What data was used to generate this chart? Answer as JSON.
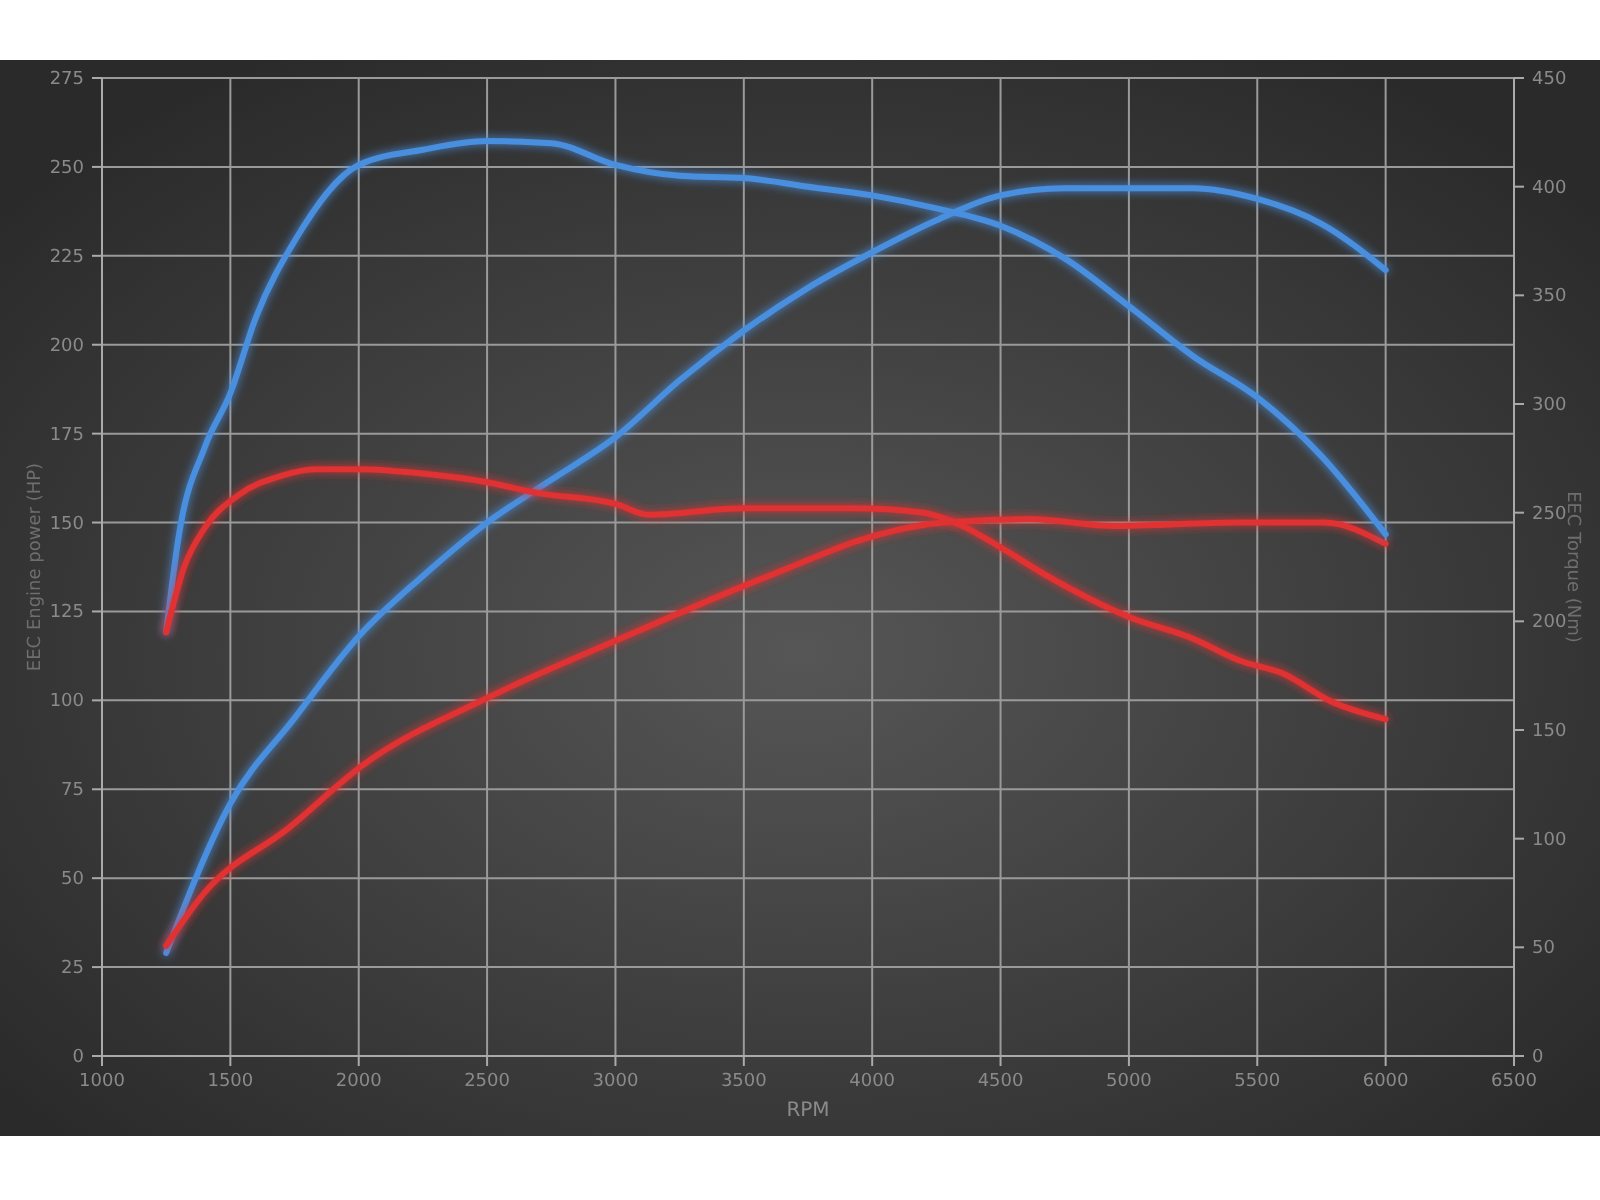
{
  "chart_data": {
    "type": "line",
    "xlabel": "RPM",
    "ylabel": "EEC Engine power (HP)",
    "y2label": "EEC Torque (Nm)",
    "xlim": [
      1000,
      6500
    ],
    "xticks": [
      1000,
      1500,
      2000,
      2500,
      3000,
      3500,
      4000,
      4500,
      5000,
      5500,
      6000,
      6500
    ],
    "ylim": [
      0,
      275
    ],
    "yticks": [
      0,
      25,
      50,
      75,
      100,
      125,
      150,
      175,
      200,
      225,
      250,
      275
    ],
    "y2lim": [
      0,
      450
    ],
    "y2ticks": [
      0,
      50,
      100,
      150,
      200,
      250,
      300,
      350,
      400,
      450
    ],
    "grid": true,
    "marker": "none",
    "line_style": "solid",
    "series": [
      {
        "color": "#4a8fe0",
        "x": [
          1250,
          1500,
          1750,
          2000,
          2250,
          2500,
          2750,
          3000,
          3250,
          3500,
          3750,
          4000,
          4250,
          4500,
          4750,
          5000,
          5250,
          5500,
          5750,
          6000
        ],
        "values": [
          29,
          71,
          95,
          118,
          135,
          150,
          162,
          174,
          190,
          204,
          216,
          226,
          235,
          242,
          244,
          244,
          244,
          241,
          234,
          221
        ]
      },
      {
        "color": "#e03030",
        "x": [
          1250,
          1400,
          1725,
          2020,
          2510,
          3040,
          3460,
          3700,
          3950,
          4280,
          4615,
          4940,
          5430,
          5760,
          6000
        ],
        "values": [
          31,
          46,
          64,
          82,
          101,
          118,
          131,
          138,
          145,
          150,
          151,
          149,
          150,
          150,
          144
        ]
      },
      {
        "color": "#4a8fe0",
        "axis": "y2",
        "x": [
          1250,
          1300,
          1400,
          1500,
          1600,
          1750,
          2000,
          2250,
          2500,
          2750,
          3000,
          3250,
          3500,
          3750,
          4000,
          4250,
          4500,
          4750,
          5000,
          5250,
          5500,
          5750,
          6000
        ],
        "values": [
          195,
          240,
          280,
          305,
          340,
          375,
          410,
          417,
          421,
          420,
          410,
          405,
          404,
          400,
          396,
          390,
          382,
          367,
          345,
          322,
          303,
          276,
          240
        ]
      },
      {
        "color": "#e03030",
        "axis": "y2",
        "x": [
          1250,
          1320,
          1400,
          1530,
          1700,
          1830,
          2000,
          2250,
          2500,
          2700,
          3000,
          3130,
          3500,
          3920,
          4200,
          4350,
          4500,
          4680,
          5000,
          5250,
          5430,
          5600,
          5790,
          6000
        ],
        "values": [
          195,
          225,
          243,
          258,
          267,
          270,
          270,
          268,
          264,
          259,
          254,
          249,
          252,
          252,
          250,
          244,
          234,
          221,
          202,
          192,
          182,
          176,
          163,
          155
        ]
      }
    ]
  }
}
